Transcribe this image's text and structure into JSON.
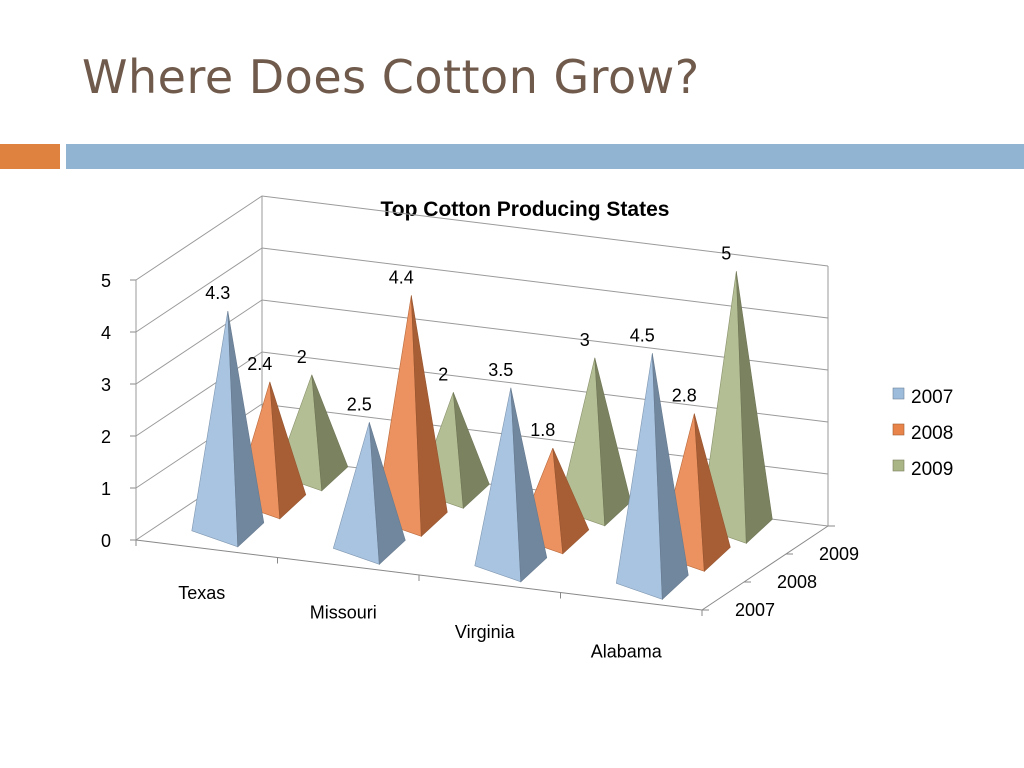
{
  "slide": {
    "title": "Where Does Cotton Grow?"
  },
  "colors": {
    "title": "#6f5a4c",
    "accent_orange": "#e0823f",
    "accent_blue": "#92b4d3",
    "series_2007": "#9dbcdc",
    "series_2008": "#e8834a",
    "series_2009": "#aab585"
  },
  "chart_data": {
    "type": "bar",
    "shape": "3d-cone",
    "title": "Top Cotton Producing States",
    "categories": [
      "Texas",
      "Missouri",
      "Virginia",
      "Alabama"
    ],
    "series": [
      {
        "name": "2007",
        "values": [
          4.3,
          2.5,
          3.5,
          4.5
        ]
      },
      {
        "name": "2008",
        "values": [
          2.4,
          4.4,
          1.8,
          2.8
        ]
      },
      {
        "name": "2009",
        "values": [
          2,
          2,
          3,
          5
        ]
      }
    ],
    "depth_labels": [
      "2007",
      "2008",
      "2009"
    ],
    "y_ticks": [
      "0",
      "1",
      "2",
      "3",
      "4",
      "5"
    ],
    "ylim": [
      0,
      5
    ],
    "grid": true,
    "legend": {
      "position": "right",
      "entries": [
        "2007",
        "2008",
        "2009"
      ]
    }
  }
}
